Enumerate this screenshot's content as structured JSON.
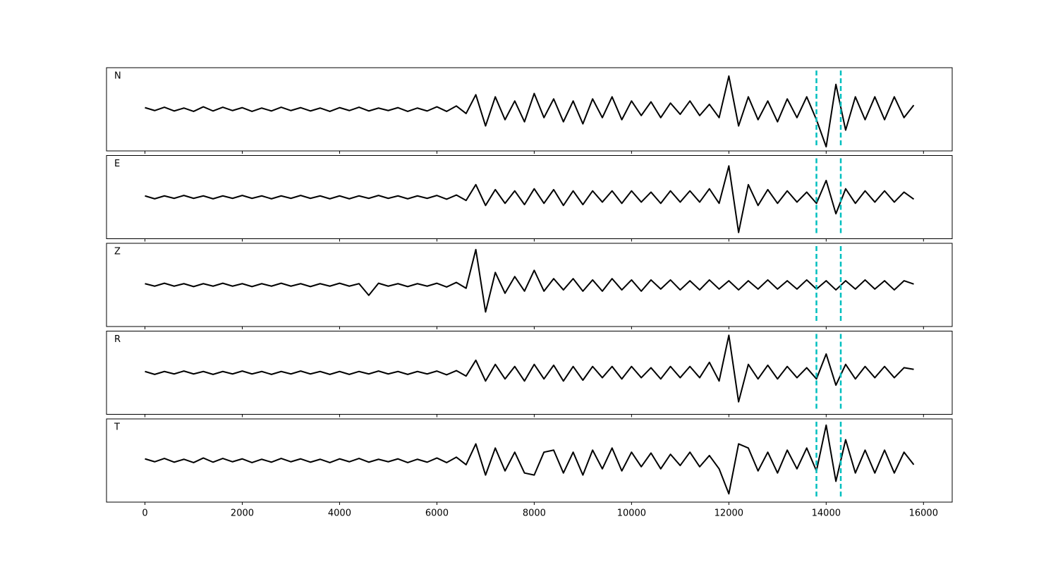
{
  "chart_data": {
    "type": "line",
    "layout": "stacked",
    "x": [
      0,
      200,
      400,
      600,
      800,
      1000,
      1200,
      1400,
      1600,
      1800,
      2000,
      2200,
      2400,
      2600,
      2800,
      3000,
      3200,
      3400,
      3600,
      3800,
      4000,
      4200,
      4400,
      4600,
      4800,
      5000,
      5200,
      5400,
      5600,
      5800,
      6000,
      6200,
      6400,
      6600,
      6800,
      7000,
      7200,
      7400,
      7600,
      7800,
      8000,
      8200,
      8400,
      8600,
      8800,
      9000,
      9200,
      9400,
      9600,
      9800,
      10000,
      10200,
      10400,
      10600,
      10800,
      11000,
      11200,
      11400,
      11600,
      11800,
      12000,
      12200,
      12400,
      12600,
      12800,
      13000,
      13200,
      13400,
      13600,
      13800,
      14000,
      14200,
      14400,
      14600,
      14800,
      15000,
      15200,
      15400,
      15600,
      15800
    ],
    "xlim": [
      -790,
      16590
    ],
    "xticks": [
      0,
      2000,
      4000,
      6000,
      8000,
      10000,
      12000,
      14000,
      16000
    ],
    "ylim": [
      -1,
      1
    ],
    "series": [
      {
        "name": "N",
        "color": "#000000",
        "values": [
          0.04,
          -0.03,
          0.05,
          -0.04,
          0.03,
          -0.05,
          0.06,
          -0.04,
          0.05,
          -0.03,
          0.04,
          -0.05,
          0.03,
          -0.04,
          0.05,
          -0.03,
          0.04,
          -0.04,
          0.03,
          -0.05,
          0.04,
          -0.03,
          0.05,
          -0.04,
          0.03,
          -0.03,
          0.04,
          -0.05,
          0.03,
          -0.04,
          0.06,
          -0.05,
          0.08,
          -0.1,
          0.35,
          -0.4,
          0.3,
          -0.25,
          0.2,
          -0.3,
          0.38,
          -0.2,
          0.25,
          -0.3,
          0.2,
          -0.35,
          0.25,
          -0.2,
          0.3,
          -0.25,
          0.2,
          -0.15,
          0.18,
          -0.2,
          0.15,
          -0.12,
          0.2,
          -0.15,
          0.12,
          -0.2,
          0.8,
          -0.4,
          0.3,
          -0.25,
          0.2,
          -0.3,
          0.25,
          -0.2,
          0.3,
          -0.25,
          -0.9,
          0.6,
          -0.5,
          0.3,
          -0.25,
          0.3,
          -0.25,
          0.3,
          -0.2,
          0.1
        ]
      },
      {
        "name": "E",
        "color": "#000000",
        "values": [
          0.03,
          -0.04,
          0.03,
          -0.03,
          0.04,
          -0.03,
          0.03,
          -0.04,
          0.03,
          -0.03,
          0.04,
          -0.03,
          0.03,
          -0.04,
          0.03,
          -0.03,
          0.04,
          -0.03,
          0.03,
          -0.04,
          0.03,
          -0.04,
          0.03,
          -0.03,
          0.04,
          -0.03,
          0.03,
          -0.04,
          0.03,
          -0.03,
          0.04,
          -0.05,
          0.05,
          -0.08,
          0.3,
          -0.2,
          0.18,
          -0.15,
          0.15,
          -0.18,
          0.2,
          -0.15,
          0.18,
          -0.2,
          0.15,
          -0.18,
          0.15,
          -0.12,
          0.15,
          -0.15,
          0.15,
          -0.12,
          0.12,
          -0.15,
          0.15,
          -0.12,
          0.15,
          -0.12,
          0.2,
          -0.15,
          0.75,
          -0.85,
          0.3,
          -0.2,
          0.18,
          -0.15,
          0.15,
          -0.12,
          0.12,
          -0.15,
          0.4,
          -0.4,
          0.2,
          -0.15,
          0.15,
          -0.12,
          0.15,
          -0.12,
          0.12,
          -0.05
        ]
      },
      {
        "name": "Z",
        "color": "#000000",
        "values": [
          0.03,
          -0.03,
          0.04,
          -0.03,
          0.03,
          -0.04,
          0.03,
          -0.03,
          0.04,
          -0.03,
          0.03,
          -0.04,
          0.03,
          -0.03,
          0.04,
          -0.03,
          0.03,
          -0.04,
          0.03,
          -0.03,
          0.04,
          -0.03,
          0.03,
          -0.25,
          0.04,
          -0.03,
          0.03,
          -0.04,
          0.03,
          -0.03,
          0.04,
          -0.05,
          0.06,
          -0.08,
          0.85,
          -0.65,
          0.3,
          -0.2,
          0.2,
          -0.15,
          0.35,
          -0.15,
          0.15,
          -0.12,
          0.15,
          -0.15,
          0.12,
          -0.15,
          0.15,
          -0.12,
          0.12,
          -0.15,
          0.12,
          -0.1,
          0.12,
          -0.12,
          0.1,
          -0.12,
          0.12,
          -0.1,
          0.1,
          -0.12,
          0.1,
          -0.1,
          0.12,
          -0.1,
          0.1,
          -0.1,
          0.12,
          -0.1,
          0.1,
          -0.12,
          0.1,
          -0.1,
          0.12,
          -0.1,
          0.1,
          -0.12,
          0.1,
          0.02
        ]
      },
      {
        "name": "R",
        "color": "#000000",
        "values": [
          0.03,
          -0.04,
          0.03,
          -0.03,
          0.04,
          -0.03,
          0.03,
          -0.04,
          0.03,
          -0.03,
          0.04,
          -0.03,
          0.03,
          -0.04,
          0.03,
          -0.03,
          0.04,
          -0.03,
          0.03,
          -0.04,
          0.03,
          -0.04,
          0.03,
          -0.03,
          0.04,
          -0.03,
          0.03,
          -0.04,
          0.03,
          -0.03,
          0.04,
          -0.05,
          0.05,
          -0.08,
          0.3,
          -0.2,
          0.2,
          -0.15,
          0.15,
          -0.2,
          0.2,
          -0.15,
          0.18,
          -0.2,
          0.15,
          -0.18,
          0.15,
          -0.12,
          0.15,
          -0.15,
          0.15,
          -0.12,
          0.12,
          -0.15,
          0.15,
          -0.12,
          0.15,
          -0.12,
          0.25,
          -0.2,
          0.9,
          -0.7,
          0.2,
          -0.15,
          0.18,
          -0.15,
          0.15,
          -0.12,
          0.12,
          -0.15,
          0.45,
          -0.3,
          0.2,
          -0.15,
          0.15,
          -0.12,
          0.15,
          -0.12,
          0.12,
          0.08
        ]
      },
      {
        "name": "T",
        "color": "#000000",
        "values": [
          0.04,
          -0.03,
          0.05,
          -0.04,
          0.03,
          -0.05,
          0.06,
          -0.04,
          0.05,
          -0.03,
          0.04,
          -0.05,
          0.03,
          -0.04,
          0.05,
          -0.03,
          0.04,
          -0.04,
          0.03,
          -0.05,
          0.04,
          -0.03,
          0.05,
          -0.04,
          0.03,
          -0.03,
          0.04,
          -0.05,
          0.03,
          -0.04,
          0.06,
          -0.05,
          0.08,
          -0.1,
          0.4,
          -0.35,
          0.3,
          -0.25,
          0.2,
          -0.3,
          -0.35,
          0.2,
          0.25,
          -0.3,
          0.2,
          -0.35,
          0.25,
          -0.2,
          0.3,
          -0.25,
          0.2,
          -0.15,
          0.18,
          -0.2,
          0.15,
          -0.12,
          0.2,
          -0.15,
          0.12,
          -0.2,
          -0.8,
          0.4,
          0.3,
          -0.25,
          0.2,
          -0.3,
          0.25,
          -0.2,
          0.3,
          -0.25,
          0.85,
          -0.5,
          0.5,
          -0.3,
          0.25,
          -0.3,
          0.25,
          -0.3,
          0.2,
          -0.1
        ]
      }
    ],
    "vlines": {
      "x": [
        13800,
        14300
      ],
      "color": "#00bfbf",
      "linestyle": "dashed"
    }
  }
}
